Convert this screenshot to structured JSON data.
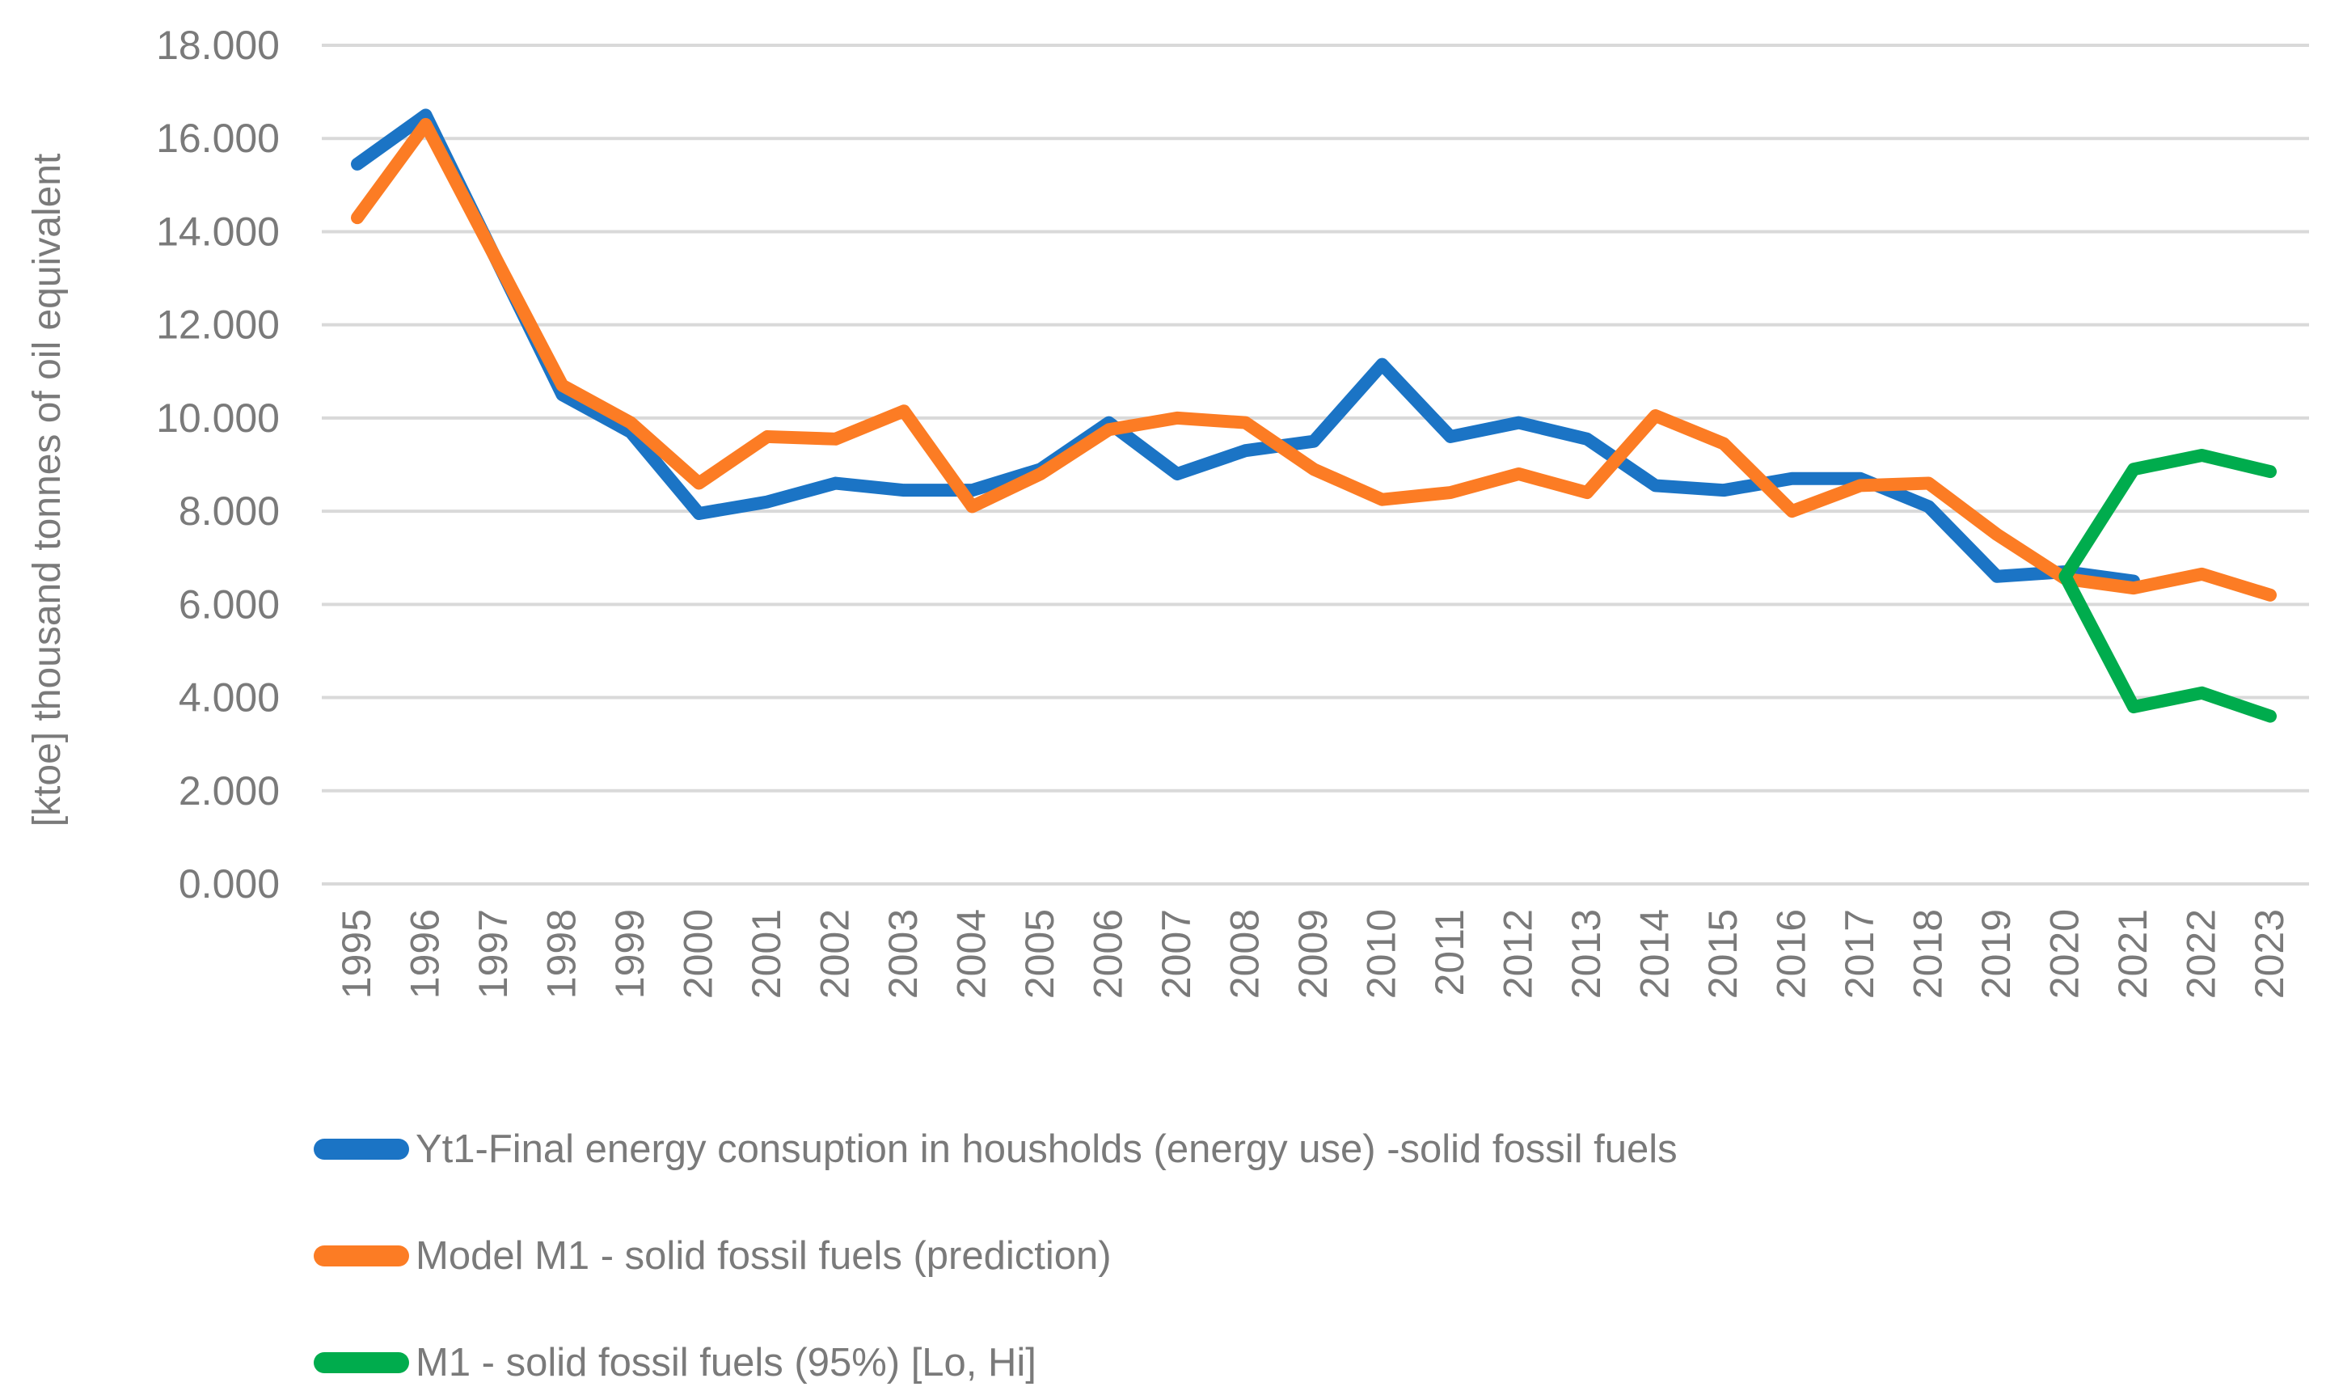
{
  "chart_data": {
    "type": "line",
    "title": "",
    "xlabel": "",
    "ylabel": "[ktoe] thousand tonnes of oil equivalent",
    "x_categories": [
      "1995",
      "1996",
      "1997",
      "1998",
      "1999",
      "2000",
      "2001",
      "2002",
      "2003",
      "2004",
      "2005",
      "2006",
      "2007",
      "2008",
      "2009",
      "2010",
      "2011",
      "2012",
      "2013",
      "2014",
      "2015",
      "2016",
      "2017",
      "2018",
      "2019",
      "2020",
      "2021",
      "2022",
      "2023"
    ],
    "ylim": [
      0,
      18
    ],
    "y_tick_step": 2,
    "y_tick_labels": [
      "18.000",
      "16.000",
      "14.000",
      "12.000",
      "10.000",
      "8.000",
      "6.000",
      "4.000",
      "2.000",
      "0.000"
    ],
    "grid": true,
    "gridline_color": "#D9D9D9",
    "text_color": "#7A7A7A",
    "legend_position": "bottom-left",
    "series": [
      {
        "name": "Yt1-Final energy consuption in housholds (energy use) -solid fossil fuels",
        "color": "#1B74C5",
        "values": [
          15.45,
          16.5,
          13.5,
          10.5,
          9.7,
          7.95,
          8.2,
          8.6,
          8.45,
          8.45,
          8.9,
          9.9,
          8.8,
          9.3,
          9.5,
          11.15,
          9.6,
          9.9,
          9.55,
          8.55,
          8.45,
          8.7,
          8.7,
          8.1,
          6.6,
          6.7,
          6.5,
          null,
          null
        ]
      },
      {
        "name": "Model M1 - solid fossil fuels (prediction)",
        "color": "#FC7C24",
        "values": [
          14.3,
          16.3,
          13.5,
          10.7,
          9.9,
          8.6,
          9.6,
          9.55,
          10.15,
          8.1,
          8.8,
          9.75,
          10.0,
          9.9,
          8.9,
          8.25,
          8.4,
          8.8,
          8.4,
          10.05,
          9.45,
          8.0,
          8.55,
          8.6,
          7.5,
          6.55,
          6.35,
          6.65,
          6.2
        ]
      },
      {
        "name": "M1 - solid fossil fuels (95%) [Lo, Hi]",
        "color": "#00AC4D",
        "values_hi": [
          null,
          null,
          null,
          null,
          null,
          null,
          null,
          null,
          null,
          null,
          null,
          null,
          null,
          null,
          null,
          null,
          null,
          null,
          null,
          null,
          null,
          null,
          null,
          null,
          null,
          6.6,
          8.9,
          9.2,
          8.85
        ],
        "values_lo": [
          null,
          null,
          null,
          null,
          null,
          null,
          null,
          null,
          null,
          null,
          null,
          null,
          null,
          null,
          null,
          null,
          null,
          null,
          null,
          null,
          null,
          null,
          null,
          null,
          null,
          6.6,
          3.8,
          4.1,
          3.6
        ]
      }
    ]
  }
}
